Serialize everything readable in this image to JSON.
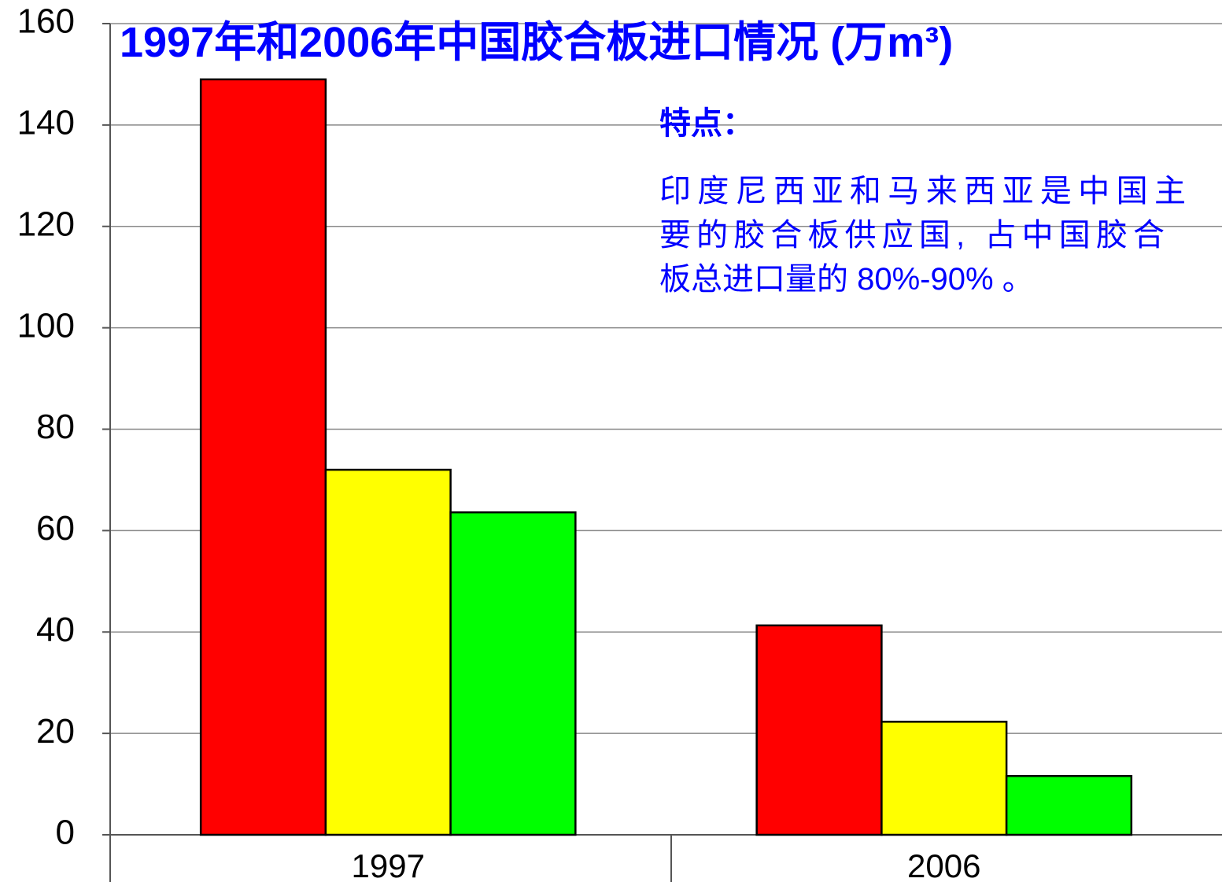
{
  "chart_data": {
    "type": "bar",
    "title": "1997年和2006年中国胶合板进口情况 (万m³)",
    "categories": [
      "1997",
      "2006"
    ],
    "series": [
      {
        "color": "#ff0000",
        "values": [
          149,
          41.3
        ]
      },
      {
        "color": "#ffff00",
        "values": [
          72,
          22.3
        ]
      },
      {
        "color": "#00ff00",
        "values": [
          63.6,
          11.6
        ]
      }
    ],
    "ylim": [
      0,
      160
    ],
    "yticks": [
      0,
      20,
      40,
      60,
      80,
      100,
      120,
      140,
      160
    ],
    "grid": true,
    "annotation": {
      "heading": "特点：",
      "lines": [
        "印度尼西亚和马来西亚是中国主",
        "要的胶合板供应国, 占中国胶合",
        "板总进口量的 80%-90% 。"
      ]
    }
  }
}
